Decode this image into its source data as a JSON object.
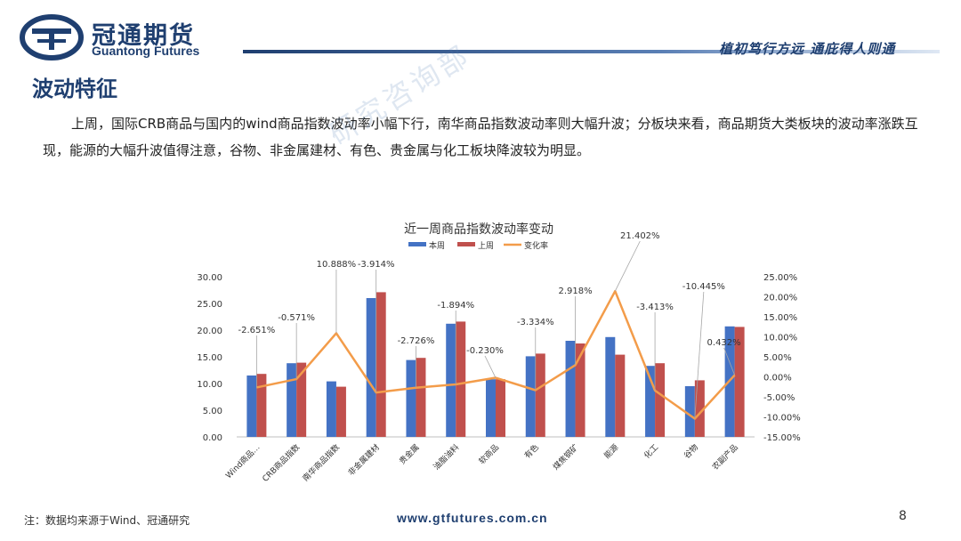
{
  "header": {
    "brand_cn": "冠通期货",
    "brand_en": "Guantong Futures",
    "slogan": "植初笃行方远 通庇得人则通"
  },
  "section_title": "波动特征",
  "paragraph": "上周，国际CRB商品与国内的wind商品指数波动率小幅下行，南华商品指数波动率则大幅升波；分板块来看，商品期货大类板块的波动率涨跌互现，能源的大幅升波值得注意，谷物、非金属建材、有色、贵金属与化工板块降波较为明显。",
  "watermark": "研究咨询部",
  "footer": {
    "note": "注：数据均来源于Wind、冠通研究",
    "url": "www.gtfutures.com.cn",
    "page": "8"
  },
  "colors": {
    "brand": "#1f3f70",
    "series_this_week": "#4472c4",
    "series_last_week": "#c0504d",
    "series_change": "#f39c4a"
  },
  "chart_data": {
    "type": "bar",
    "title": "近一周商品指数波动率变动",
    "categories": [
      "Wind商品…",
      "CRB商品指数",
      "南华商品指数",
      "非金属建材",
      "贵金属",
      "油脂油料",
      "软商品",
      "有色",
      "煤焦钢矿",
      "能源",
      "化工",
      "谷物",
      "农副产品"
    ],
    "series": [
      {
        "name": "本周",
        "type": "bar",
        "axis": "left",
        "values": [
          11.5,
          13.8,
          10.4,
          26.0,
          14.4,
          21.2,
          10.8,
          15.1,
          18.0,
          18.7,
          13.3,
          9.5,
          20.7
        ]
      },
      {
        "name": "上周",
        "type": "bar",
        "axis": "left",
        "values": [
          11.8,
          13.9,
          9.4,
          27.1,
          14.8,
          21.6,
          10.8,
          15.6,
          17.5,
          15.4,
          13.8,
          10.6,
          20.6
        ]
      },
      {
        "name": "变化率",
        "type": "line",
        "axis": "right",
        "values": [
          -2.651,
          -0.571,
          10.888,
          -3.914,
          -2.726,
          -1.894,
          -0.23,
          -3.334,
          2.918,
          21.402,
          -3.413,
          -10.445,
          0.432
        ]
      }
    ],
    "data_labels": [
      "-2.651%",
      "-0.571%",
      "10.888%",
      "-3.914%",
      "-2.726%",
      "-1.894%",
      "-0.230%",
      "-3.334%",
      "2.918%",
      "21.402%",
      "-3.413%",
      "-10.445%",
      "0.432%"
    ],
    "left_axis": {
      "min": 0,
      "max": 30,
      "step": 5,
      "ticks": [
        "0.00",
        "5.00",
        "10.00",
        "15.00",
        "20.00",
        "25.00",
        "30.00"
      ]
    },
    "right_axis": {
      "min": -15,
      "max": 25,
      "step": 5,
      "ticks": [
        "-15.00%",
        "-10.00%",
        "-5.00%",
        "0.00%",
        "5.00%",
        "10.00%",
        "15.00%",
        "20.00%",
        "25.00%"
      ]
    },
    "legend_position": "top",
    "grid": false
  }
}
